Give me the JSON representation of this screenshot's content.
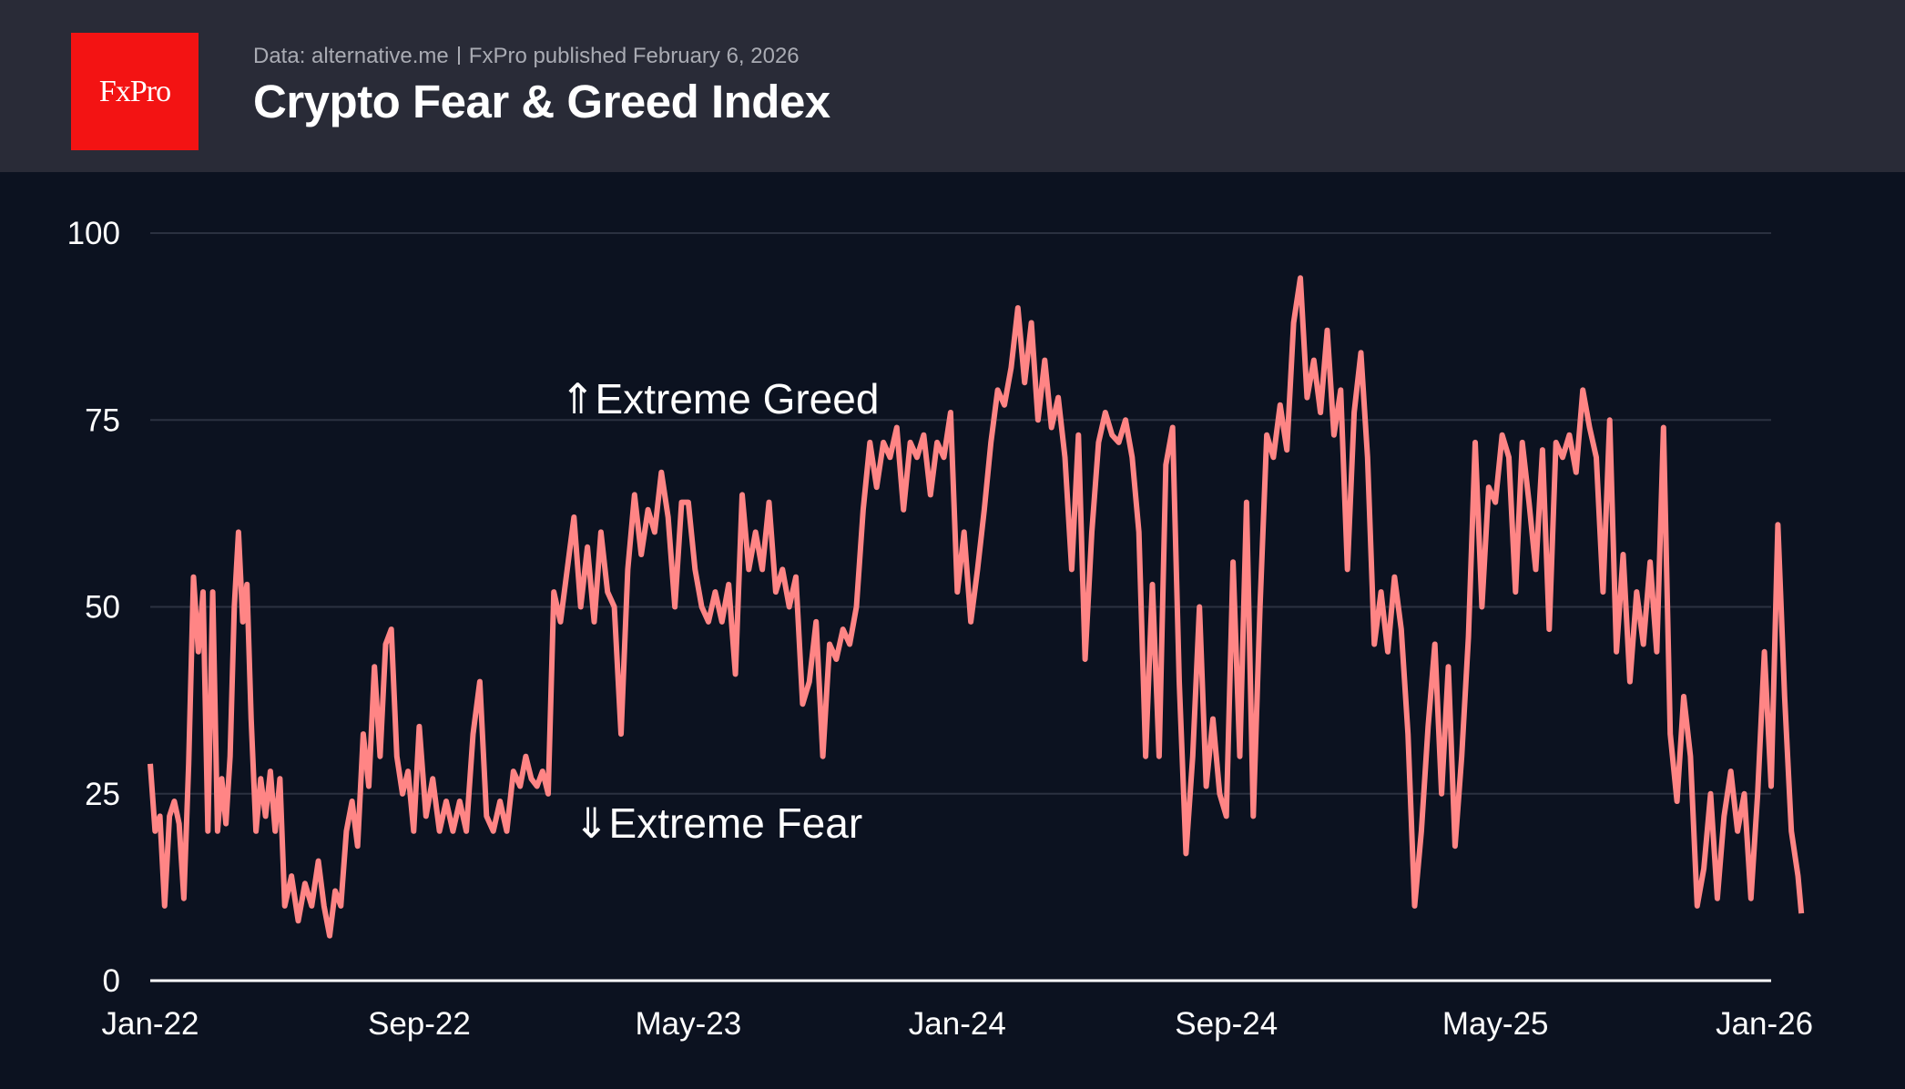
{
  "header": {
    "logo_text": "FxPro",
    "source": "Data: alternative.me",
    "published": "FxPro published February 6, 2026",
    "title": "Crypto Fear & Greed Index"
  },
  "colors": {
    "line": "#ff8585",
    "logo": "#f31313",
    "background": "#0c1220",
    "header": "#292b37",
    "grid": "#2b3140"
  },
  "chart_data": {
    "type": "line",
    "title": "Crypto Fear & Greed Index",
    "xlabel": "",
    "ylabel": "",
    "ylim": [
      0,
      100
    ],
    "yticks": [
      "0",
      "25",
      "50",
      "75",
      "100"
    ],
    "xticks": [
      "Jan-22",
      "Sep-22",
      "May-23",
      "Jan-24",
      "Sep-24",
      "May-25",
      "Jan-26"
    ],
    "grid": true,
    "annotations": {
      "greed": "⇑Extreme Greed",
      "fear": "⇓Extreme Fear"
    },
    "series": [
      {
        "month": "2022-01",
        "values": [
          29,
          20,
          22,
          10,
          22,
          24,
          21
        ]
      },
      {
        "month": "2022-02",
        "values": [
          11,
          29,
          54,
          44,
          52,
          20,
          52
        ]
      },
      {
        "month": "2022-03",
        "values": [
          20,
          27,
          21,
          30,
          50,
          60,
          48,
          53
        ]
      },
      {
        "month": "2022-04",
        "values": [
          35,
          20,
          27,
          22,
          28,
          20,
          27
        ]
      },
      {
        "month": "2022-05",
        "values": [
          10,
          14,
          8,
          13,
          10
        ]
      },
      {
        "month": "2022-06",
        "values": [
          16,
          10,
          6,
          12,
          10,
          20
        ]
      },
      {
        "month": "2022-07",
        "values": [
          24,
          18,
          33,
          26,
          42,
          30
        ]
      },
      {
        "month": "2022-08",
        "values": [
          45,
          47,
          30,
          25,
          28,
          20
        ]
      },
      {
        "month": "2022-09",
        "values": [
          34,
          22,
          27,
          20,
          24
        ]
      },
      {
        "month": "2022-10",
        "values": [
          20,
          24,
          20,
          33,
          40
        ]
      },
      {
        "month": "2022-11",
        "values": [
          22,
          20,
          24,
          20,
          28
        ]
      },
      {
        "month": "2022-12",
        "values": [
          26,
          30,
          27,
          26,
          28,
          25
        ]
      },
      {
        "month": "2023-01",
        "values": [
          52,
          48,
          55,
          62,
          50
        ]
      },
      {
        "month": "2023-02",
        "values": [
          58,
          48,
          60,
          52,
          50
        ]
      },
      {
        "month": "2023-03",
        "values": [
          33,
          55,
          65,
          57,
          63
        ]
      },
      {
        "month": "2023-04",
        "values": [
          60,
          68,
          62,
          50,
          64
        ]
      },
      {
        "month": "2023-05",
        "values": [
          64,
          55,
          50,
          48,
          52
        ]
      },
      {
        "month": "2023-06",
        "values": [
          48,
          53,
          41,
          65,
          55
        ]
      },
      {
        "month": "2023-07",
        "values": [
          60,
          55,
          64,
          52,
          55
        ]
      },
      {
        "month": "2023-08",
        "values": [
          50,
          54,
          37,
          40,
          48
        ]
      },
      {
        "month": "2023-09",
        "values": [
          30,
          45,
          43,
          47,
          45
        ]
      },
      {
        "month": "2023-10",
        "values": [
          50,
          63,
          72,
          66,
          72
        ]
      },
      {
        "month": "2023-11",
        "values": [
          70,
          74,
          63,
          72,
          70
        ]
      },
      {
        "month": "2023-12",
        "values": [
          73,
          65,
          72,
          70,
          76
        ]
      },
      {
        "month": "2024-01",
        "values": [
          52,
          60,
          48,
          55,
          63
        ]
      },
      {
        "month": "2024-02",
        "values": [
          72,
          79,
          77,
          82,
          90
        ]
      },
      {
        "month": "2024-03",
        "values": [
          80,
          88,
          75,
          83,
          74
        ]
      },
      {
        "month": "2024-04",
        "values": [
          78,
          70,
          55,
          73,
          43
        ]
      },
      {
        "month": "2024-05",
        "values": [
          60,
          72,
          76,
          73,
          72
        ]
      },
      {
        "month": "2024-06",
        "values": [
          75,
          70,
          60,
          30,
          53
        ]
      },
      {
        "month": "2024-07",
        "values": [
          30,
          69,
          74,
          40,
          17
        ]
      },
      {
        "month": "2024-08",
        "values": [
          30,
          50,
          26,
          35,
          25
        ]
      },
      {
        "month": "2024-09",
        "values": [
          22,
          56,
          30,
          64,
          22
        ]
      },
      {
        "month": "2024-10",
        "values": [
          50,
          73,
          70,
          77,
          71
        ]
      },
      {
        "month": "2024-11",
        "values": [
          88,
          94,
          78,
          83,
          76
        ]
      },
      {
        "month": "2024-12",
        "values": [
          87,
          73,
          79,
          55,
          76
        ]
      },
      {
        "month": "2025-01",
        "values": [
          84,
          70,
          45,
          52,
          44
        ]
      },
      {
        "month": "2025-02",
        "values": [
          54,
          47,
          33,
          10,
          20
        ]
      },
      {
        "month": "2025-03",
        "values": [
          34,
          45,
          25,
          42,
          18
        ]
      },
      {
        "month": "2025-04",
        "values": [
          30,
          46,
          72,
          50,
          66
        ]
      },
      {
        "month": "2025-05",
        "values": [
          64,
          73,
          70,
          52,
          72
        ]
      },
      {
        "month": "2025-06",
        "values": [
          64,
          55,
          71,
          47,
          72
        ]
      },
      {
        "month": "2025-07",
        "values": [
          70,
          73,
          68,
          79,
          74
        ]
      },
      {
        "month": "2025-08",
        "values": [
          70,
          52,
          75,
          44,
          57
        ]
      },
      {
        "month": "2025-09",
        "values": [
          40,
          52,
          45,
          56,
          44
        ]
      },
      {
        "month": "2025-10",
        "values": [
          74,
          33,
          24,
          38,
          30
        ]
      },
      {
        "month": "2025-11",
        "values": [
          10,
          15,
          25,
          11,
          22
        ]
      },
      {
        "month": "2025-12",
        "values": [
          28,
          20,
          25,
          11,
          25
        ]
      },
      {
        "month": "2026-01",
        "values": [
          44,
          26,
          61,
          38,
          20
        ]
      },
      {
        "month": "2026-02",
        "values": [
          14,
          9
        ]
      }
    ]
  }
}
